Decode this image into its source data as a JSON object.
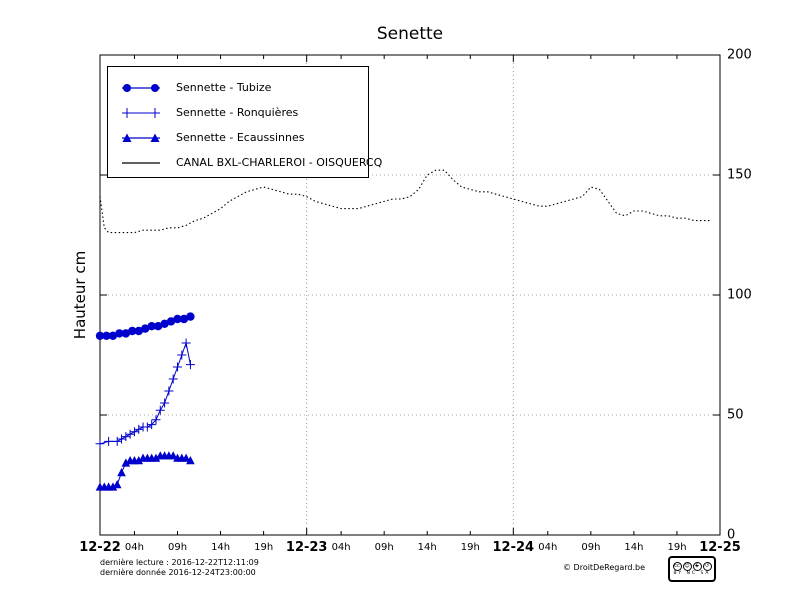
{
  "title": "Senette",
  "axes": {
    "ylabel": "Hauteur cm",
    "yticks": [
      "200",
      "150",
      "100",
      "50",
      "0"
    ],
    "x_major": [
      "12-22",
      "12-23",
      "12-24",
      "12-25"
    ],
    "x_minor": [
      "04h",
      "09h",
      "14h",
      "19h",
      "04h",
      "09h",
      "14h",
      "19h",
      "04h",
      "09h",
      "14h",
      "19h"
    ]
  },
  "legend": [
    {
      "label": "Sennette - Tubize",
      "marker": "circle"
    },
    {
      "label": "Sennette - Ronquières",
      "marker": "plus"
    },
    {
      "label": "Sennette - Ecaussinnes",
      "marker": "triangle"
    },
    {
      "label": "CANAL BXL-CHARLEROI  - OISQUERCQ",
      "marker": "line"
    }
  ],
  "footer": {
    "line1": "dernière lecture : 2016-12-22T12:11:09",
    "line2": "dernière donnée  2016-12-24T23:00:00",
    "copyright": "© DroitDeRegard.be",
    "cc": {
      "logo": "cc",
      "by_icon": "☺",
      "nc_icon": "$",
      "sa_icon": "↺",
      "codes": "BY NC SA"
    }
  },
  "chart_data": {
    "type": "line",
    "title": "Senette",
    "ylabel": "Hauteur cm",
    "ylim": [
      0,
      200
    ],
    "xlim_hours": [
      0,
      72
    ],
    "x_unit": "hours since 2016-12-22 00:00",
    "x_major_hours": [
      0,
      24,
      48,
      72
    ],
    "x_minor_hours": [
      4,
      9,
      14,
      19,
      28,
      33,
      38,
      43,
      52,
      57,
      62,
      67
    ],
    "grid": {
      "y_major": [
        50,
        100,
        150
      ],
      "x_major": [
        24,
        48
      ]
    },
    "legend_position": "top-left",
    "series": [
      {
        "name": "Sennette - Tubize",
        "marker": "circle",
        "style": "solid",
        "color": "#0000cd",
        "x": [
          0,
          0.75,
          1.5,
          2.25,
          3,
          3.75,
          4.5,
          5.25,
          6,
          6.75,
          7.5,
          8.25,
          9,
          9.75,
          10.5
        ],
        "y": [
          83,
          83,
          83,
          84,
          84,
          85,
          85,
          86,
          87,
          87,
          88,
          89,
          90,
          90,
          91
        ]
      },
      {
        "name": "Sennette - Ronquières",
        "marker": "plus",
        "style": "solid",
        "color": "#0000cd",
        "x": [
          0,
          1,
          2,
          2.5,
          3,
          3.5,
          4,
          4.5,
          5,
          5.5,
          6,
          6.5,
          7,
          7.5,
          8,
          8.5,
          9,
          9.5,
          10,
          10.5
        ],
        "y": [
          38,
          39,
          39,
          40,
          41,
          42,
          43,
          44,
          45,
          45,
          46,
          48,
          52,
          55,
          60,
          65,
          70,
          75,
          80,
          71
        ]
      },
      {
        "name": "Sennette - Ecaussinnes",
        "marker": "triangle",
        "style": "solid",
        "color": "#0000cd",
        "x": [
          0,
          0.5,
          1,
          1.5,
          2,
          2.5,
          3,
          3.5,
          4,
          4.5,
          5,
          5.5,
          6,
          6.5,
          7,
          7.5,
          8,
          8.5,
          9,
          9.5,
          10,
          10.5
        ],
        "y": [
          20,
          20,
          20,
          20,
          21,
          26,
          30,
          31,
          31,
          31,
          32,
          32,
          32,
          32,
          33,
          33,
          33,
          33,
          32,
          32,
          32,
          31
        ]
      },
      {
        "name": "CANAL BXL-CHARLEROI  - OISQUERCQ",
        "marker": "none",
        "style": "dotted",
        "color": "#000000",
        "x": [
          0,
          0.5,
          1,
          2,
          3,
          4,
          5,
          6,
          7,
          8,
          9,
          10,
          11,
          12,
          13,
          14,
          15,
          16,
          17,
          18,
          19,
          20,
          21,
          22,
          23,
          24,
          25,
          26,
          27,
          28,
          29,
          30,
          31,
          32,
          33,
          34,
          35,
          36,
          37,
          38,
          39,
          40,
          41,
          42,
          43,
          44,
          45,
          46,
          47,
          48,
          49,
          50,
          51,
          52,
          53,
          54,
          55,
          56,
          57,
          58,
          59,
          60,
          61,
          62,
          63,
          64,
          65,
          66,
          67,
          68,
          69,
          70,
          71
        ],
        "y": [
          141,
          128,
          126,
          126,
          126,
          126,
          127,
          127,
          127,
          128,
          128,
          129,
          131,
          132,
          134,
          136,
          139,
          141,
          143,
          144,
          145,
          144,
          143,
          142,
          142,
          141,
          139,
          138,
          137,
          136,
          136,
          136,
          137,
          138,
          139,
          140,
          140,
          141,
          144,
          150,
          152,
          152,
          148,
          145,
          144,
          143,
          143,
          142,
          141,
          140,
          139,
          138,
          137,
          137,
          138,
          139,
          140,
          141,
          145,
          144,
          139,
          134,
          133,
          135,
          135,
          134,
          133,
          133,
          132,
          132,
          131,
          131,
          131
        ]
      }
    ]
  }
}
